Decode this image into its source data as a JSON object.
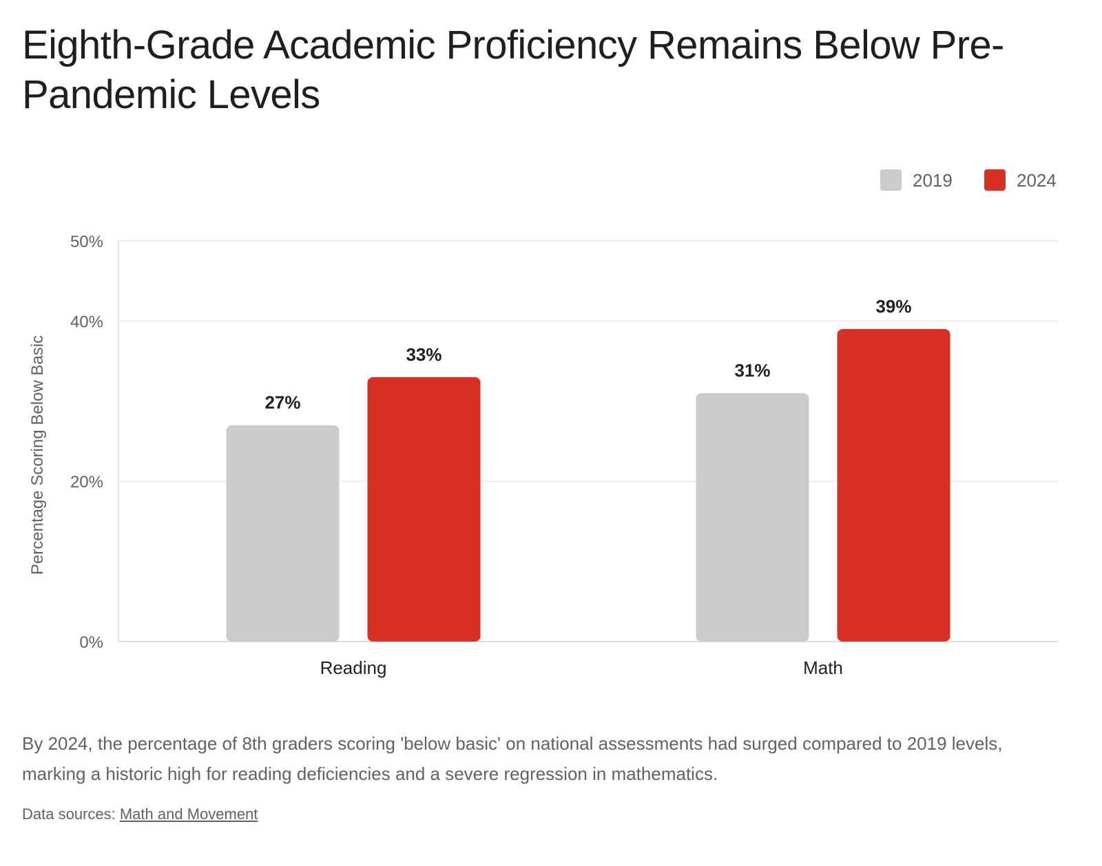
{
  "header": {
    "title": "Eighth-Grade Academic Proficiency Remains Below Pre-Pandemic Levels"
  },
  "caption": "By 2024, the percentage of 8th graders scoring 'below basic' on national assessments had surged compared to 2019 levels, marking a historic high for reading deficiencies and a severe regression in mathematics.",
  "sources": {
    "prefix": "Data sources:",
    "link_label": "Math and Movement"
  },
  "chart_data": {
    "type": "bar",
    "title": "",
    "xlabel": "",
    "ylabel": "Percentage Scoring Below Basic",
    "categories": [
      "Reading",
      "Math"
    ],
    "series": [
      {
        "name": "2019",
        "values": [
          27,
          31
        ],
        "labels": [
          "27%",
          "31%"
        ],
        "color": "#cccccc"
      },
      {
        "name": "2024",
        "values": [
          33,
          39
        ],
        "labels": [
          "33%",
          "39%"
        ],
        "color": "#d93025"
      }
    ],
    "ylim": [
      0,
      50
    ],
    "yticks": [
      0,
      20,
      40,
      50
    ],
    "ytick_labels": [
      "0%",
      "20%",
      "40%",
      "50%"
    ],
    "grid": true,
    "legend_position": "top-right"
  }
}
